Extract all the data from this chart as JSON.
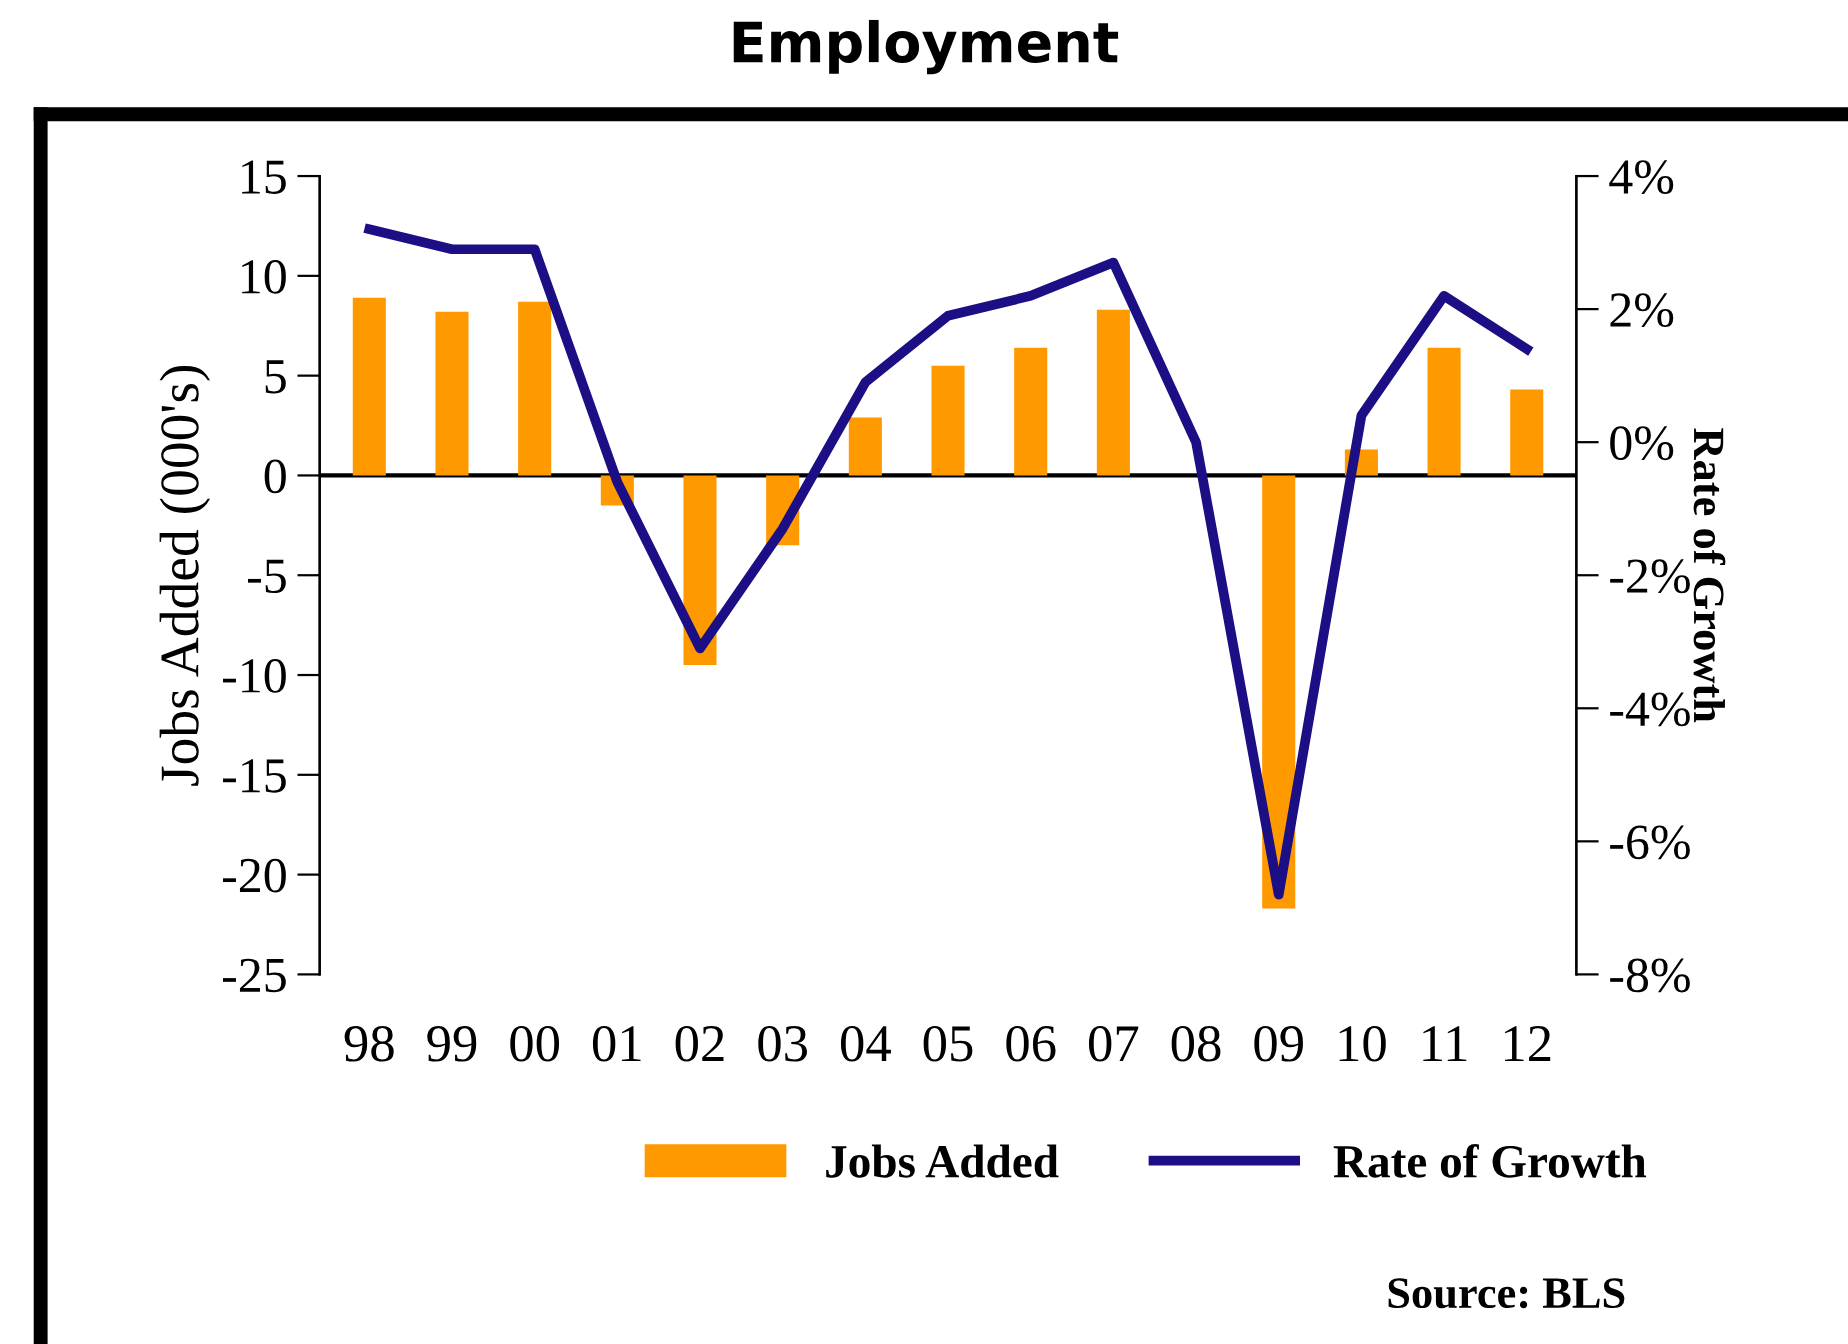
{
  "chart_data": {
    "type": "bar",
    "title": "Employment",
    "ylabel": "Jobs Added (000's)",
    "y2label": "Rate of Growth",
    "categories": [
      "98",
      "99",
      "00",
      "01",
      "02",
      "03",
      "04",
      "05",
      "06",
      "07",
      "08",
      "09",
      "10",
      "11",
      "12"
    ],
    "series": [
      {
        "name": "Jobs Added",
        "type": "bar",
        "color": "#ff9900",
        "values": [
          8.9,
          8.2,
          8.7,
          -1.5,
          -9.5,
          -3.5,
          2.9,
          5.5,
          6.4,
          8.3,
          0,
          -21.7,
          1.3,
          6.4,
          4.3
        ]
      },
      {
        "name": "Rate of Growth",
        "type": "line",
        "axis": "y2",
        "color": "#1c0f85",
        "values": [
          3.2,
          2.9,
          2.9,
          -0.6,
          -3.1,
          -1.3,
          0.9,
          1.9,
          2.2,
          2.7,
          0,
          -6.8,
          0.4,
          2.2,
          1.4
        ]
      }
    ],
    "ylim": [
      -25,
      15
    ],
    "yticks": [
      -25,
      -20,
      -15,
      -10,
      -5,
      0,
      5,
      10,
      15
    ],
    "y2lim": [
      -8,
      4
    ],
    "y2ticks": [
      {
        "value": -8,
        "label": "-8%"
      },
      {
        "value": -6,
        "label": "-6%"
      },
      {
        "value": -4,
        "label": "-4%"
      },
      {
        "value": -2,
        "label": "-2%"
      },
      {
        "value": 0,
        "label": "0%"
      },
      {
        "value": 2,
        "label": "2%"
      },
      {
        "value": 4,
        "label": "4%"
      }
    ],
    "ref_lines": [
      {
        "axis": "y",
        "value": 0,
        "color": "#000000"
      }
    ],
    "grid": false,
    "legend": "bottom",
    "marker": "none",
    "line_style": "solid",
    "annotations": [
      "Source: BLS"
    ]
  }
}
